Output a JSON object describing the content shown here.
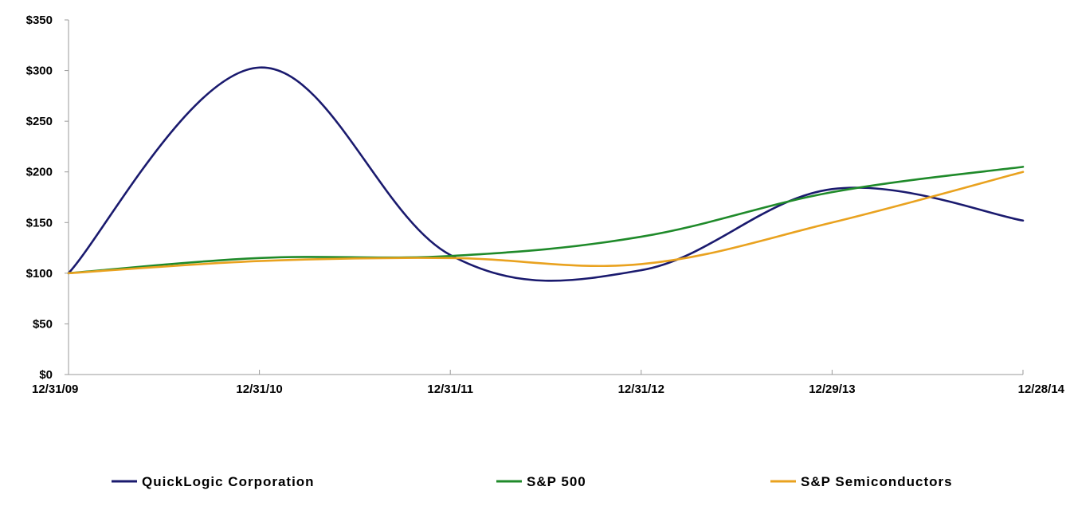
{
  "chart_data": {
    "type": "line",
    "title": "",
    "xlabel": "",
    "ylabel": "",
    "categories": [
      "12/31/09",
      "12/31/10",
      "12/31/11",
      "12/31/12",
      "12/29/13",
      "12/28/14"
    ],
    "y_ticks": [
      "$0",
      "$50",
      "$100",
      "$150",
      "$200",
      "$250",
      "$300",
      "$350"
    ],
    "ylim": [
      0,
      350
    ],
    "grid": false,
    "legend_position": "bottom",
    "series": [
      {
        "name": "QuickLogic Corporation",
        "color": "#1a1a6e",
        "values": [
          100,
          303,
          118,
          103,
          183,
          152
        ]
      },
      {
        "name": "S&P 500",
        "color": "#1f8a2a",
        "values": [
          100,
          115,
          117,
          136,
          180,
          205
        ]
      },
      {
        "name": "S&P Semiconductors",
        "color": "#e9a21f",
        "values": [
          100,
          112,
          115,
          109,
          150,
          200
        ]
      }
    ]
  }
}
